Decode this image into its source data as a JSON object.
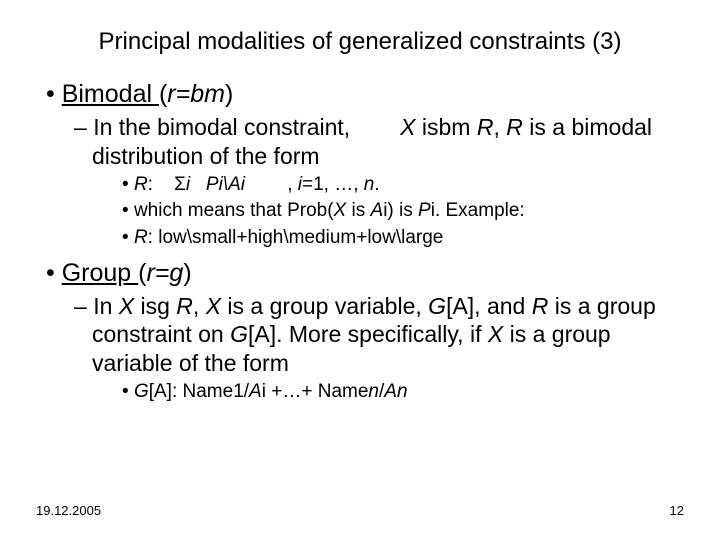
{
  "title": "Principal modalities of generalized constraints (3)",
  "l1": {
    "item1_label": "Bimodal ",
    "item1_paren_pre": "(",
    "item1_paren_body": "r=bm",
    "item1_paren_post": ")",
    "item2_label": "Group ",
    "item2_paren_pre": "(",
    "item2_paren_body": "r=g",
    "item2_paren_post": ")"
  },
  "l2": {
    "bimodal_pre": "In the bimodal constraint,",
    "bimodal_var": "X",
    "bimodal_mid": " isbm ",
    "bimodal_r1": "R",
    "bimodal_comma": ", ",
    "bimodal_r2": "R",
    "bimodal_post": " is a bimodal distribution of the form",
    "group_pre": "In ",
    "group_x": "X",
    "group_isg": " isg ",
    "group_r1": "R",
    "group_c1": ", ",
    "group_x2": "X",
    "group_mid": " is a group variable, ",
    "group_ga1": "G",
    "group_ga1b": "[A], ",
    "group_and": "and ",
    "group_r2": "R",
    "group_tail1": " is a group constraint on ",
    "group_ga2": "G",
    "group_ga2b": "[A].",
    "group_more": " More specifically, if ",
    "group_x3": "X",
    "group_tail2": " is a group variable of the form"
  },
  "l3": {
    "r_def_r": "R",
    "r_def_colon": ":",
    "r_def_sigma": "Σ",
    "r_def_i": "i",
    "r_def_body": "Pi\\Ai",
    "r_def_tail_pre": ", ",
    "r_def_tail_i": "i",
    "r_def_tail_mid": "=1, …, ",
    "r_def_tail_n": "n",
    "r_def_tail_dot": ".",
    "prob_pre": "which means that Prob(",
    "prob_x": "X",
    "prob_mid": " is ",
    "prob_ai": "A",
    "prob_i": "i",
    "prob_post": ") is ",
    "prob_pi_p": "P",
    "prob_pi_i": "i",
    "prob_dot": ". Example:",
    "example_r": "R",
    "example_body": ": low\\small+high\\medium+low\\large",
    "ga_def_g": "G",
    "ga_def_lab": "[A]:",
    "ga_def_body_pre": "  Name1/",
    "ga_def_a1_a": "A",
    "ga_def_a1_i": "i",
    "ga_def_mid": " +…+ Name",
    "ga_def_n1": "n",
    "ga_def_slash": "/",
    "ga_def_an_a": "A",
    "ga_def_an_n": "n"
  },
  "footer": {
    "date": "19.12.2005",
    "page": "12"
  }
}
